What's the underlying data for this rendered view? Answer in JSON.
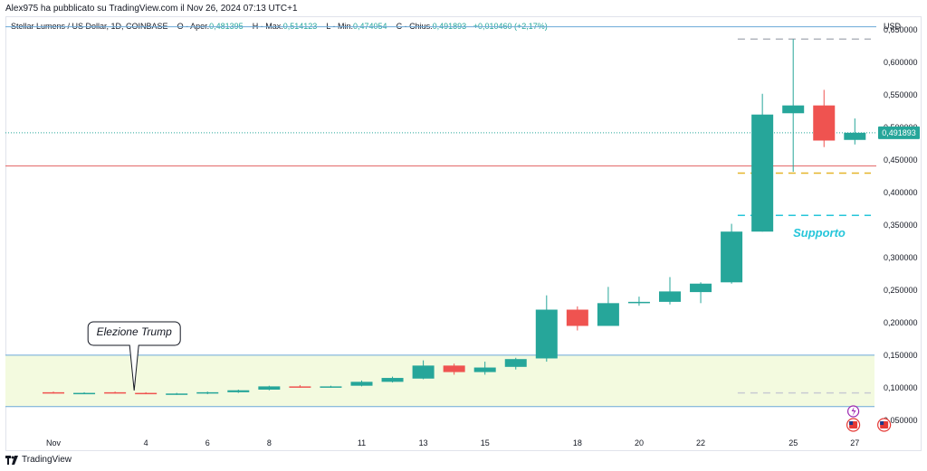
{
  "header": {
    "published_by": "Alex975 ha pubblicato su TradingView.com il Nov 26, 2024 07:13 UTC+1"
  },
  "legend": {
    "symbol": "Stellar Lumens / US Dollar, 1D, COINBASE",
    "open_label": "O - Aper.",
    "open": "0,481395",
    "high_label": "H - Max.",
    "high": "0,514123",
    "low_label": "L - Min.",
    "low": "0,474054",
    "close_label": "C - Chius.",
    "close": "0,491893",
    "change": "+0,010460 (+2,17%)"
  },
  "currency": "USD",
  "footer": {
    "brand": "TradingView"
  },
  "colors": {
    "up": "#26a69a",
    "down": "#ef5350",
    "resistance_line": "#e57373",
    "support_label": "#26c6da",
    "zone_fill": "#f3fadf",
    "zone_border": "#6aa8d8",
    "price_tag": "#26a69a"
  },
  "chart_data": {
    "type": "candlestick",
    "ylim": [
      0.04,
      0.66
    ],
    "y_ticks": [
      "0,650000",
      "0,600000",
      "0,550000",
      "0,500000",
      "0,450000",
      "0,400000",
      "0,350000",
      "0,300000",
      "0,250000",
      "0,200000",
      "0,150000",
      "0,100000",
      "0,050000"
    ],
    "x_ticks": [
      {
        "label": "Nov",
        "x": 1
      },
      {
        "label": "4",
        "x": 4
      },
      {
        "label": "6",
        "x": 6
      },
      {
        "label": "8",
        "x": 8
      },
      {
        "label": "11",
        "x": 11
      },
      {
        "label": "13",
        "x": 13
      },
      {
        "label": "15",
        "x": 15
      },
      {
        "label": "18",
        "x": 18
      },
      {
        "label": "20",
        "x": 20
      },
      {
        "label": "22",
        "x": 22
      },
      {
        "label": "25",
        "x": 25
      },
      {
        "label": "27",
        "x": 27
      }
    ],
    "candles": [
      {
        "x": 1,
        "o": 0.093,
        "h": 0.094,
        "l": 0.091,
        "c": 0.092
      },
      {
        "x": 2,
        "o": 0.092,
        "h": 0.093,
        "l": 0.091,
        "c": 0.092
      },
      {
        "x": 3,
        "o": 0.093,
        "h": 0.094,
        "l": 0.091,
        "c": 0.092
      },
      {
        "x": 4,
        "o": 0.092,
        "h": 0.093,
        "l": 0.09,
        "c": 0.091
      },
      {
        "x": 5,
        "o": 0.09,
        "h": 0.092,
        "l": 0.089,
        "c": 0.091
      },
      {
        "x": 6,
        "o": 0.091,
        "h": 0.094,
        "l": 0.09,
        "c": 0.093
      },
      {
        "x": 7,
        "o": 0.093,
        "h": 0.097,
        "l": 0.092,
        "c": 0.096
      },
      {
        "x": 8,
        "o": 0.097,
        "h": 0.103,
        "l": 0.096,
        "c": 0.102
      },
      {
        "x": 9,
        "o": 0.102,
        "h": 0.104,
        "l": 0.1,
        "c": 0.101
      },
      {
        "x": 10,
        "o": 0.101,
        "h": 0.103,
        "l": 0.1,
        "c": 0.102
      },
      {
        "x": 11,
        "o": 0.103,
        "h": 0.111,
        "l": 0.102,
        "c": 0.109
      },
      {
        "x": 12,
        "o": 0.109,
        "h": 0.117,
        "l": 0.108,
        "c": 0.115
      },
      {
        "x": 13,
        "o": 0.114,
        "h": 0.142,
        "l": 0.113,
        "c": 0.134
      },
      {
        "x": 14,
        "o": 0.134,
        "h": 0.137,
        "l": 0.12,
        "c": 0.124
      },
      {
        "x": 15,
        "o": 0.124,
        "h": 0.14,
        "l": 0.12,
        "c": 0.131
      },
      {
        "x": 16,
        "o": 0.132,
        "h": 0.146,
        "l": 0.128,
        "c": 0.144
      },
      {
        "x": 17,
        "o": 0.145,
        "h": 0.242,
        "l": 0.14,
        "c": 0.22
      },
      {
        "x": 18,
        "o": 0.22,
        "h": 0.225,
        "l": 0.188,
        "c": 0.195
      },
      {
        "x": 19,
        "o": 0.195,
        "h": 0.255,
        "l": 0.195,
        "c": 0.23
      },
      {
        "x": 20,
        "o": 0.231,
        "h": 0.24,
        "l": 0.226,
        "c": 0.232
      },
      {
        "x": 21,
        "o": 0.232,
        "h": 0.27,
        "l": 0.228,
        "c": 0.248
      },
      {
        "x": 22,
        "o": 0.247,
        "h": 0.262,
        "l": 0.23,
        "c": 0.26
      },
      {
        "x": 23,
        "o": 0.262,
        "h": 0.352,
        "l": 0.26,
        "c": 0.34
      },
      {
        "x": 24,
        "o": 0.34,
        "h": 0.552,
        "l": 0.34,
        "c": 0.52
      },
      {
        "x": 25,
        "o": 0.522,
        "h": 0.636,
        "l": 0.432,
        "c": 0.534
      },
      {
        "x": 26,
        "o": 0.534,
        "h": 0.558,
        "l": 0.47,
        "c": 0.48
      },
      {
        "x": 27,
        "o": 0.481,
        "h": 0.514,
        "l": 0.474,
        "c": 0.492
      }
    ],
    "levels": {
      "resistance": 0.441,
      "dashed_gold": 0.43,
      "support": 0.365,
      "high_dashed": 0.636,
      "low_dashed": 0.092,
      "zone_top": 0.15,
      "zone_bottom": 0.071,
      "top_line": 0.655
    },
    "last_price_label": "0,491893",
    "last_price": 0.491893,
    "annotations": {
      "callout": "Elezione Trump",
      "callout_x": 5,
      "support_label": "Supporto"
    }
  }
}
